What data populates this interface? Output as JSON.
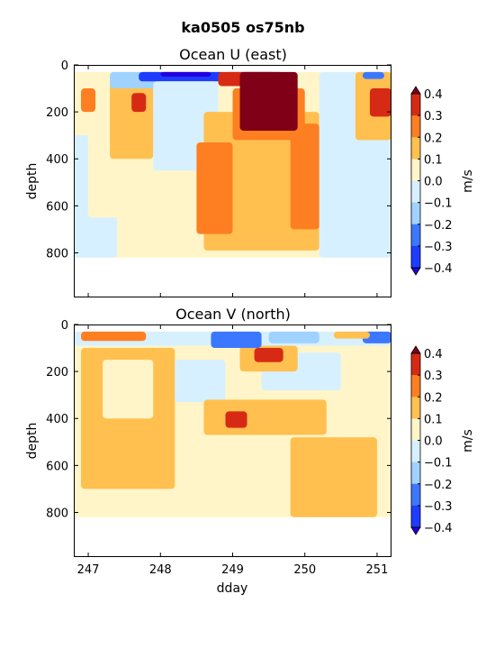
{
  "chart_data": {
    "type": "heatmap",
    "title": "ka0505 os75nb",
    "colors": [
      "#2200e0",
      "#1e3cff",
      "#3c78ff",
      "#a0d2ff",
      "#d7f0ff",
      "#fff5c8",
      "#ffc050",
      "#fd7f21",
      "#d72a14",
      "#800018"
    ],
    "levels": [
      -0.4,
      -0.3,
      -0.2,
      -0.1,
      0.0,
      0.1,
      0.2,
      0.3,
      0.4
    ],
    "panels": [
      {
        "title": "Ocean U (east)",
        "xlabel": "",
        "ylabel": "depth",
        "xlim": [
          246.8,
          251.2
        ],
        "ylim": [
          990,
          0
        ],
        "xticks": [],
        "yticks": [
          "0",
          "200",
          "400",
          "600",
          "800"
        ],
        "colorbar": {
          "label": "m/s",
          "ticks": [
            "0.4",
            "0.3",
            "0.2",
            "0.1",
            "0.0",
            "−0.1",
            "−0.2",
            "−0.3",
            "−0.4"
          ]
        },
        "bottom_depth": 820,
        "background_level": 4,
        "regions": [
          {
            "x": [
              246.8,
              251.2
            ],
            "d": [
              30,
              820
            ],
            "level": 5
          },
          {
            "x": [
              246.8,
              247.4
            ],
            "d": [
              300,
              820
            ],
            "level": 4
          },
          {
            "x": [
              247.0,
              248.1
            ],
            "d": [
              30,
              650
            ],
            "level": 5
          },
          {
            "x": [
              247.3,
              247.9
            ],
            "d": [
              50,
              400
            ],
            "level": 6
          },
          {
            "x": [
              247.6,
              247.8
            ],
            "d": [
              120,
              200
            ],
            "level": 8
          },
          {
            "x": [
              246.9,
              247.1
            ],
            "d": [
              100,
              200
            ],
            "level": 7
          },
          {
            "x": [
              247.3,
              248.0
            ],
            "d": [
              30,
              100
            ],
            "level": 3
          },
          {
            "x": [
              247.7,
              248.9
            ],
            "d": [
              30,
              70
            ],
            "level": 1
          },
          {
            "x": [
              248.0,
              248.7
            ],
            "d": [
              30,
              50
            ],
            "level": 0
          },
          {
            "x": [
              247.9,
              248.8
            ],
            "d": [
              70,
              450
            ],
            "level": 4
          },
          {
            "x": [
              248.9,
              249.6
            ],
            "d": [
              30,
              80
            ],
            "level": 2
          },
          {
            "x": [
              248.6,
              250.2
            ],
            "d": [
              200,
              790
            ],
            "level": 6
          },
          {
            "x": [
              248.5,
              249.0
            ],
            "d": [
              330,
              720
            ],
            "level": 7
          },
          {
            "x": [
              249.8,
              250.2
            ],
            "d": [
              250,
              700
            ],
            "level": 7
          },
          {
            "x": [
              249.0,
              250.0
            ],
            "d": [
              100,
              320
            ],
            "level": 7
          },
          {
            "x": [
              248.8,
              249.7
            ],
            "d": [
              30,
              90
            ],
            "level": 8
          },
          {
            "x": [
              249.1,
              249.9
            ],
            "d": [
              30,
              280
            ],
            "level": 9
          },
          {
            "x": [
              250.2,
              251.2
            ],
            "d": [
              30,
              820
            ],
            "level": 4
          },
          {
            "x": [
              250.7,
              251.2
            ],
            "d": [
              30,
              320
            ],
            "level": 6
          },
          {
            "x": [
              250.9,
              251.2
            ],
            "d": [
              100,
              220
            ],
            "level": 8
          },
          {
            "x": [
              250.8,
              251.1
            ],
            "d": [
              30,
              60
            ],
            "level": 2
          }
        ]
      },
      {
        "title": "Ocean V (north)",
        "xlabel": "dday",
        "ylabel": "depth",
        "xlim": [
          246.8,
          251.2
        ],
        "ylim": [
          990,
          0
        ],
        "xticks": [
          "247",
          "248",
          "249",
          "250",
          "251"
        ],
        "yticks": [
          "0",
          "200",
          "400",
          "600",
          "800"
        ],
        "colorbar": {
          "label": "m/s",
          "ticks": [
            "0.4",
            "0.3",
            "0.2",
            "0.1",
            "0.0",
            "−0.1",
            "−0.2",
            "−0.3",
            "−0.4"
          ]
        },
        "bottom_depth": 820,
        "background_level": 5,
        "regions": [
          {
            "x": [
              246.8,
              251.2
            ],
            "d": [
              30,
              820
            ],
            "level": 5
          },
          {
            "x": [
              246.9,
              248.2
            ],
            "d": [
              100,
              700
            ],
            "level": 6
          },
          {
            "x": [
              247.2,
              247.9
            ],
            "d": [
              150,
              400
            ],
            "level": 5
          },
          {
            "x": [
              248.2,
              248.9
            ],
            "d": [
              150,
              330
            ],
            "level": 4
          },
          {
            "x": [
              249.4,
              250.5
            ],
            "d": [
              120,
              280
            ],
            "level": 4
          },
          {
            "x": [
              248.6,
              250.3
            ],
            "d": [
              320,
              470
            ],
            "level": 6
          },
          {
            "x": [
              248.9,
              249.2
            ],
            "d": [
              370,
              440
            ],
            "level": 8
          },
          {
            "x": [
              249.1,
              249.9
            ],
            "d": [
              90,
              200
            ],
            "level": 6
          },
          {
            "x": [
              249.3,
              249.7
            ],
            "d": [
              100,
              160
            ],
            "level": 8
          },
          {
            "x": [
              249.8,
              251.0
            ],
            "d": [
              480,
              820
            ],
            "level": 6
          },
          {
            "x": [
              246.8,
              251.2
            ],
            "d": [
              30,
              90
            ],
            "level": 4
          },
          {
            "x": [
              248.7,
              249.4
            ],
            "d": [
              30,
              100
            ],
            "level": 2
          },
          {
            "x": [
              249.5,
              250.2
            ],
            "d": [
              30,
              80
            ],
            "level": 3
          },
          {
            "x": [
              250.8,
              251.2
            ],
            "d": [
              30,
              80
            ],
            "level": 2
          },
          {
            "x": [
              246.9,
              247.8
            ],
            "d": [
              30,
              70
            ],
            "level": 7
          },
          {
            "x": [
              250.4,
              250.9
            ],
            "d": [
              30,
              60
            ],
            "level": 6
          }
        ]
      }
    ]
  }
}
